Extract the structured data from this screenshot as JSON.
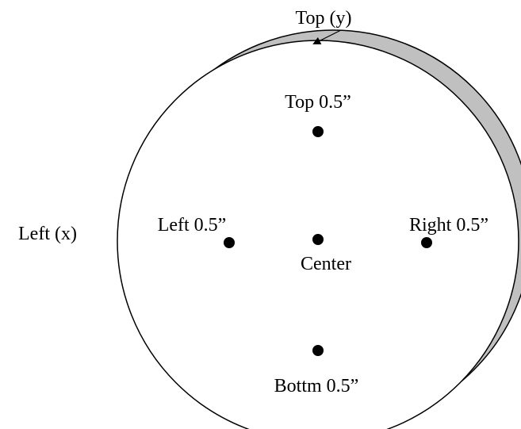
{
  "labels": {
    "top_axis": "Top (y)",
    "left_axis": "Left (x)"
  },
  "points": [
    {
      "label": "Top 0.5”"
    },
    {
      "label": "Left 0.5”"
    },
    {
      "label": "Center"
    },
    {
      "label": "Right 0.5”"
    },
    {
      "label": "Bottm 0.5”"
    }
  ]
}
